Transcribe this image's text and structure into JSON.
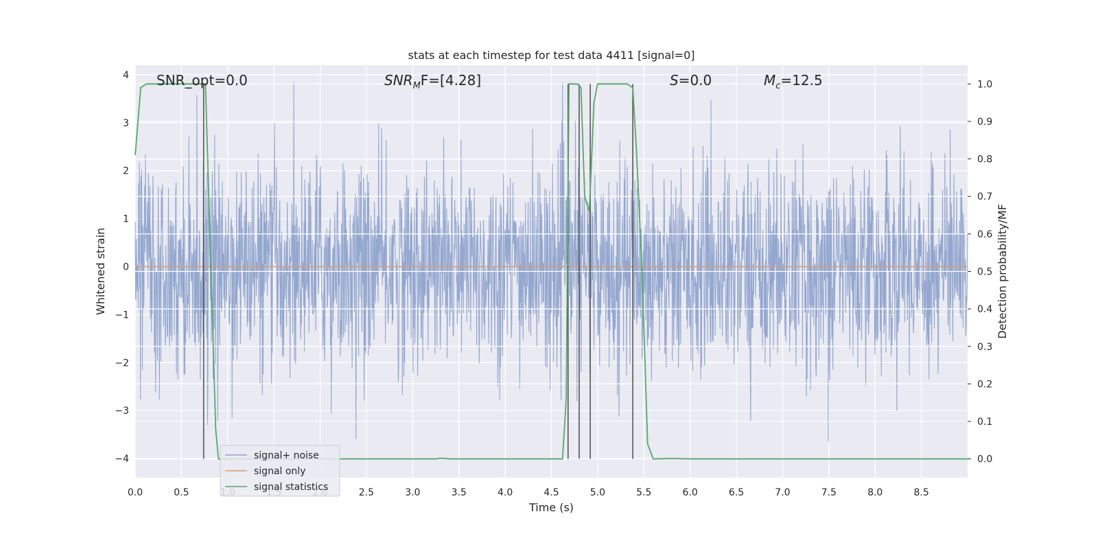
{
  "chart_data": {
    "type": "line",
    "title": "stats at each timestep for test data 4411 [signal=0]",
    "xlabel": "Time (s)",
    "ylabel": "Whitened strain",
    "ylabel_right": "Detection probability/MF",
    "xlim": [
      0.0,
      9.0
    ],
    "ylim": [
      -4.4,
      4.2
    ],
    "ylim_right": [
      -0.05,
      1.05
    ],
    "x_ticks": [
      "0.0",
      "0.5",
      "1.0",
      "1.5",
      "2.0",
      "2.5",
      "3.0",
      "3.5",
      "4.0",
      "4.5",
      "5.0",
      "5.5",
      "6.0",
      "6.5",
      "7.0",
      "7.5",
      "8.0",
      "8.5"
    ],
    "y_ticks": [
      "4",
      "3",
      "2",
      "1",
      "0",
      "−1",
      "−2",
      "−3",
      "−4"
    ],
    "y_right_ticks": [
      "1.0",
      "0.9",
      "0.8",
      "0.7",
      "0.6",
      "0.5",
      "0.4",
      "0.3",
      "0.2",
      "0.1",
      "0.0"
    ],
    "grid": true,
    "legend_position": "lower-left",
    "annotations": {
      "snr_opt": "SNR_opt=0.0",
      "snr_mf_main": "SNR",
      "snr_mf_sub": "M",
      "snr_mf_rest": "F=[4.28]",
      "s_main": "S",
      "s_rest": "=0.0",
      "mc_main": "M",
      "mc_sub": "c",
      "mc_rest": "=12.5"
    },
    "series": [
      {
        "name": "signal+ noise",
        "color": "#8ea3cc",
        "description_values": "whitened noise, roughly gaussian around 0 with typical amplitude ~±1.8 and peaks up to ~±3.8",
        "values": []
      },
      {
        "name": "signal only",
        "color": "#dd9b6e",
        "x": [
          0.0,
          9.0
        ],
        "y": [
          0.0,
          0.0
        ]
      },
      {
        "name": "signal statistics",
        "color": "#55a868",
        "x": [
          0.0,
          0.06,
          0.12,
          0.3,
          0.55,
          0.72,
          0.76,
          0.82,
          0.87,
          0.9,
          1.0,
          2.0,
          3.0,
          3.25,
          3.3,
          3.4,
          4.0,
          4.5,
          4.62,
          4.66,
          4.69,
          4.73,
          4.78,
          4.82,
          4.86,
          4.91,
          4.96,
          5.0,
          5.2,
          5.32,
          5.38,
          5.42,
          5.48,
          5.54,
          5.6,
          5.8,
          6.0,
          9.0
        ],
        "y": [
          0.81,
          0.99,
          1.0,
          1.0,
          1.0,
          1.0,
          1.0,
          0.5,
          0.08,
          0.0,
          0.0,
          0.0,
          0.0,
          0.0,
          0.002,
          0.0,
          0.0,
          0.0,
          0.0,
          0.16,
          1.0,
          1.0,
          1.0,
          0.99,
          0.7,
          0.66,
          0.95,
          1.0,
          1.0,
          1.0,
          0.99,
          0.82,
          0.5,
          0.04,
          0.0,
          0.001,
          0.0,
          0.0
        ]
      }
    ],
    "vertical_markers_x": [
      0.74,
      4.68,
      4.8,
      4.92,
      5.38
    ],
    "legend": [
      {
        "label": "signal+ noise",
        "color": "#8ea3cc"
      },
      {
        "label": "signal only",
        "color": "#dd9b6e"
      },
      {
        "label": "signal statistics",
        "color": "#55a868"
      }
    ]
  }
}
